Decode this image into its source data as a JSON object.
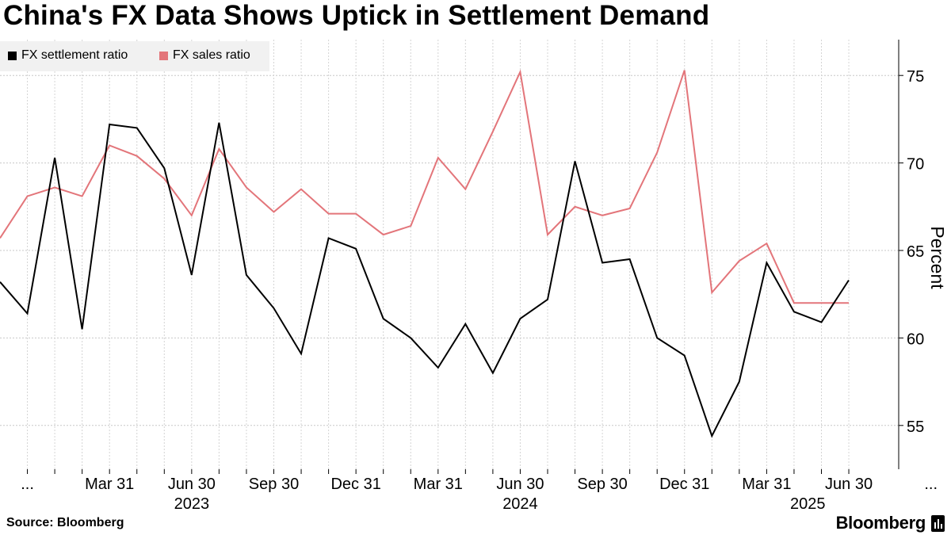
{
  "title": "China's FX Data Shows Uptick in Settlement Demand",
  "source": "Source: Bloomberg",
  "brand": "Bloomberg",
  "chart_data": {
    "type": "line",
    "ylabel": "Percent",
    "ylim": [
      52.5,
      77.5
    ],
    "yticks": [
      55,
      60,
      65,
      70,
      75
    ],
    "x_tick_labels": [
      "...",
      "Mar 31",
      "Jun 30",
      "Sep 30",
      "Dec 31",
      "Mar 31",
      "Jun 30",
      "Sep 30",
      "Dec 31",
      "Mar 31",
      "Jun 30",
      "..."
    ],
    "year_labels": [
      {
        "label": "2023",
        "under_tick": 2
      },
      {
        "label": "2024",
        "under_tick": 6
      },
      {
        "label": "2025",
        "under_tick": 9.5
      }
    ],
    "x_domain": [
      0,
      31
    ],
    "series": [
      {
        "name": "FX settlement ratio",
        "color": "#000000",
        "values": [
          63.2,
          61.4,
          70.3,
          60.5,
          72.2,
          72.0,
          69.7,
          63.6,
          72.3,
          63.6,
          61.7,
          59.1,
          65.7,
          65.1,
          61.1,
          60.0,
          58.3,
          60.8,
          58.0,
          61.1,
          62.2,
          70.1,
          64.3,
          64.5,
          60.0,
          59.0,
          54.4,
          57.5,
          64.3,
          61.5,
          60.9,
          63.3
        ]
      },
      {
        "name": "FX sales ratio",
        "color": "#e3757a",
        "values": [
          65.7,
          68.1,
          68.6,
          68.1,
          71.0,
          70.4,
          69.1,
          67.0,
          70.8,
          68.6,
          67.2,
          68.5,
          67.1,
          67.1,
          65.9,
          66.4,
          70.3,
          68.5,
          71.8,
          75.2,
          65.9,
          67.5,
          67.0,
          67.4,
          70.6,
          75.3,
          62.6,
          64.4,
          65.4,
          62.0,
          62.0,
          62.0
        ]
      }
    ]
  }
}
